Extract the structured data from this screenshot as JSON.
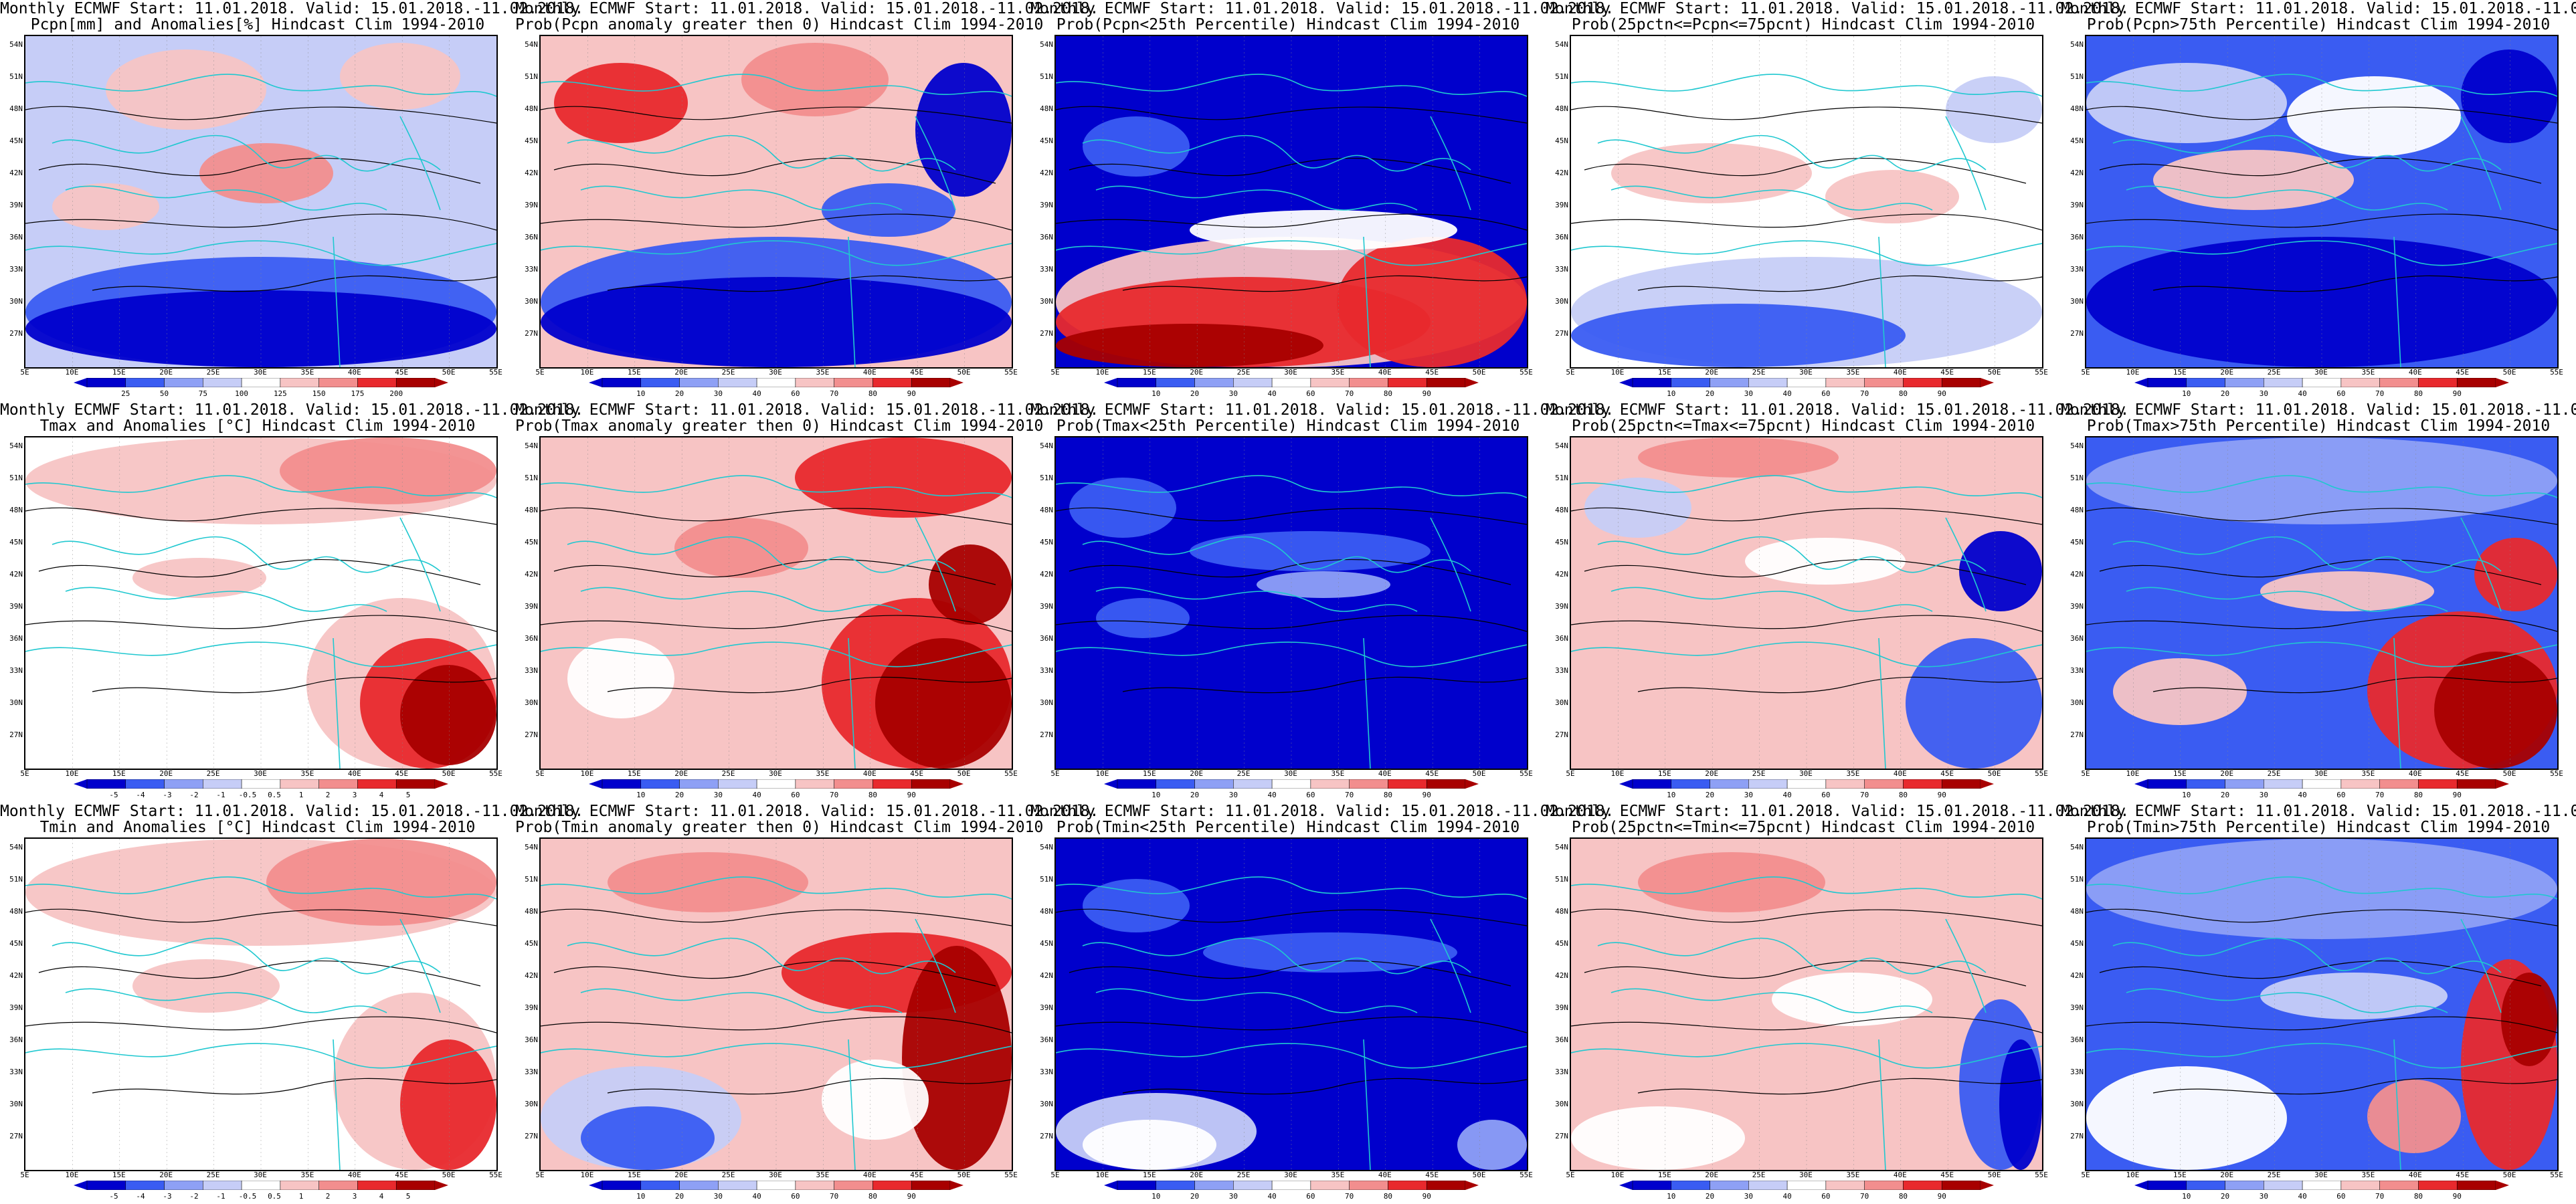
{
  "common": {
    "title_line1": "Monthly ECMWF Start: 11.01.2018. Valid: 15.01.2018.-11.02.2018.",
    "lat_labels": [
      "54N",
      "51N",
      "48N",
      "45N",
      "42N",
      "39N",
      "36N",
      "33N",
      "30N",
      "27N"
    ],
    "lon_labels": [
      "5E",
      "10E",
      "15E",
      "20E",
      "25E",
      "30E",
      "35E",
      "40E",
      "45E",
      "50E",
      "55E"
    ],
    "prob_colorbar_labels": [
      "10",
      "20",
      "30",
      "40",
      "60",
      "70",
      "80",
      "90"
    ],
    "colors": {
      "deep_blue": "#0000cc",
      "blue": "#3a5cf2",
      "mid_blue": "#8ea0f5",
      "light_blue": "#c6cdf7",
      "white": "#ffffff",
      "light_red": "#f7c4c4",
      "mid_red": "#f28e8e",
      "red": "#e8292d",
      "dark_red": "#a80000",
      "coast": "#20c8d0",
      "contour": "#000000"
    }
  },
  "panels": [
    {
      "id": "pcpn-anom",
      "title_line2": "Pcpn[mm] and Anomalies[%] Hindcast Clim 1994-2010",
      "pattern": "pcpn_anom",
      "colorbar_labels": [
        "25",
        "50",
        "75",
        "100",
        "125",
        "150",
        "175",
        "200"
      ]
    },
    {
      "id": "pcpn-prob-gt0",
      "title_line2": "Prob(Pcpn anomaly greater then 0) Hindcast Clim 1994-2010",
      "pattern": "pcpn_gt0",
      "colorbar_labels": "prob"
    },
    {
      "id": "pcpn-prob-lt25",
      "title_line2": "Prob(Pcpn<25th Percentile) Hindcast Clim 1994-2010",
      "pattern": "pcpn_lt25",
      "colorbar_labels": "prob"
    },
    {
      "id": "pcpn-prob-mid",
      "title_line2": "Prob(25pctn<=Pcpn<=75pcnt) Hindcast Clim 1994-2010",
      "pattern": "pcpn_mid",
      "colorbar_labels": "prob"
    },
    {
      "id": "pcpn-prob-gt75",
      "title_line2": "Prob(Pcpn>75th Percentile) Hindcast Clim 1994-2010",
      "pattern": "pcpn_gt75",
      "colorbar_labels": "prob"
    },
    {
      "id": "tmax-anom",
      "title_line2": "Tmax and Anomalies [°C] Hindcast Clim 1994-2010",
      "pattern": "tmax_anom",
      "colorbar_labels": [
        "-5",
        "-4",
        "-3",
        "-2",
        "-1",
        "-0.5",
        "0.5",
        "1",
        "2",
        "3",
        "4",
        "5"
      ]
    },
    {
      "id": "tmax-prob-gt0",
      "title_line2": "Prob(Tmax anomaly greater then 0) Hindcast Clim 1994-2010",
      "pattern": "tmax_gt0",
      "colorbar_labels": "prob"
    },
    {
      "id": "tmax-prob-lt25",
      "title_line2": "Prob(Tmax<25th Percentile) Hindcast Clim 1994-2010",
      "pattern": "tmax_lt25",
      "colorbar_labels": "prob"
    },
    {
      "id": "tmax-prob-mid",
      "title_line2": "Prob(25pctn<=Tmax<=75pcnt) Hindcast Clim 1994-2010",
      "pattern": "tmax_mid",
      "colorbar_labels": "prob"
    },
    {
      "id": "tmax-prob-gt75",
      "title_line2": "Prob(Tmax>75th Percentile) Hindcast Clim 1994-2010",
      "pattern": "tmax_gt75",
      "colorbar_labels": "prob"
    },
    {
      "id": "tmin-anom",
      "title_line2": "Tmin and Anomalies [°C] Hindcast Clim 1994-2010",
      "pattern": "tmin_anom",
      "colorbar_labels": [
        "-5",
        "-4",
        "-3",
        "-2",
        "-1",
        "-0.5",
        "0.5",
        "1",
        "2",
        "3",
        "4",
        "5"
      ]
    },
    {
      "id": "tmin-prob-gt0",
      "title_line2": "Prob(Tmin anomaly greater then 0) Hindcast Clim 1994-2010",
      "pattern": "tmin_gt0",
      "colorbar_labels": "prob"
    },
    {
      "id": "tmin-prob-lt25",
      "title_line2": "Prob(Tmin<25th Percentile) Hindcast Clim 1994-2010",
      "pattern": "tmin_lt25",
      "colorbar_labels": "prob"
    },
    {
      "id": "tmin-prob-mid",
      "title_line2": "Prob(25pctn<=Tmin<=75pcnt) Hindcast Clim 1994-2010",
      "pattern": "tmin_mid",
      "colorbar_labels": "prob"
    },
    {
      "id": "tmin-prob-gt75",
      "title_line2": "Prob(Tmin>75th Percentile) Hindcast Clim 1994-2010",
      "pattern": "tmin_gt75",
      "colorbar_labels": "prob"
    }
  ]
}
